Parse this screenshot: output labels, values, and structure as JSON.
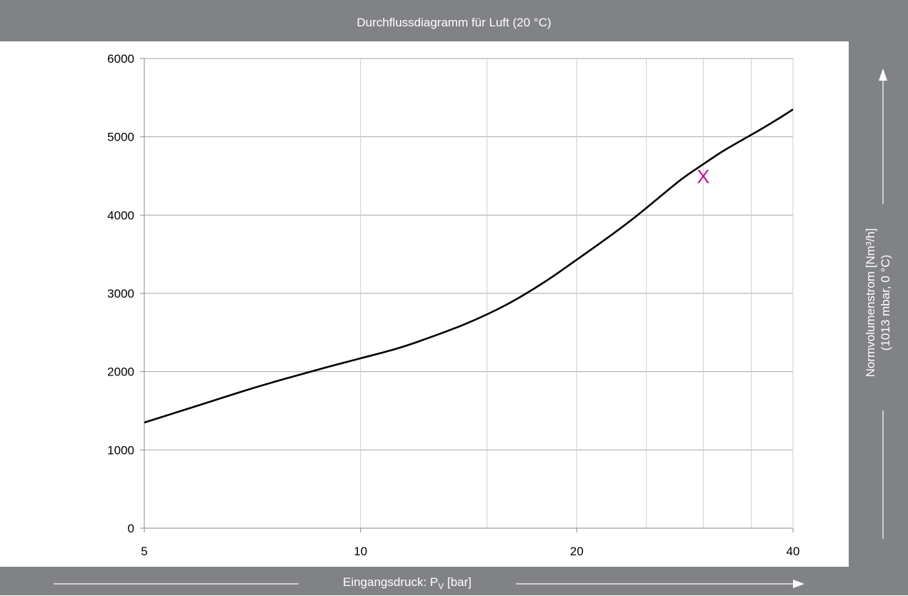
{
  "chart_data": {
    "type": "line",
    "title": "Durchflussdiagramm für Luft (20 °C)",
    "xlabel": "Eingangsdruck: P",
    "xlabel_sub": "V",
    "xlabel_unit": " [bar]",
    "ylabel_line1": "Normvolumenstrom [Nm³/h]",
    "ylabel_line2": "(1013 mbar, 0 °C)",
    "x_scale": "log",
    "xlim": [
      5,
      40
    ],
    "ylim": [
      0,
      6000
    ],
    "x_ticks": [
      5,
      10,
      20,
      40
    ],
    "y_ticks": [
      0,
      1000,
      2000,
      3000,
      4000,
      5000,
      6000
    ],
    "x_gridlines": [
      10,
      15,
      20,
      25,
      30,
      35,
      40
    ],
    "grid": true,
    "series": [
      {
        "x": [
          5,
          6,
          7,
          8,
          9,
          10,
          11,
          12,
          14,
          16,
          18,
          20,
          22,
          24,
          26,
          28,
          30,
          32,
          34,
          36,
          38,
          40
        ],
        "y": [
          1350,
          1580,
          1775,
          1930,
          2060,
          2170,
          2270,
          2380,
          2610,
          2860,
          3140,
          3430,
          3700,
          3960,
          4220,
          4460,
          4650,
          4820,
          4960,
          5090,
          5220,
          5350
        ],
        "color": "#000000"
      }
    ],
    "marker": {
      "label": "X",
      "x": 30,
      "y": 4500,
      "color": "#c0168c"
    }
  }
}
